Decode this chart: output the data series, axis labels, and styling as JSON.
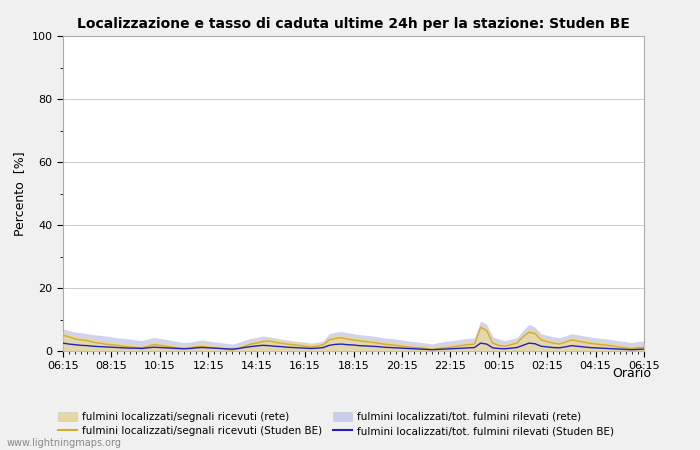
{
  "title": "Localizzazione e tasso di caduta ultime 24h per la stazione: Studen BE",
  "ylabel": "Percento  [%]",
  "ylim": [
    0,
    100
  ],
  "yticks": [
    0,
    20,
    40,
    60,
    80,
    100
  ],
  "ytick_minor": [
    10,
    30,
    50,
    70,
    90
  ],
  "xlabels": [
    "06:15",
    "08:15",
    "10:15",
    "12:15",
    "14:15",
    "16:15",
    "18:15",
    "20:15",
    "22:15",
    "00:15",
    "02:15",
    "04:15",
    "06:15"
  ],
  "background_color": "#f0f0f0",
  "plot_bg_color": "#ffffff",
  "fill_rete_color": "#e8d8a0",
  "fill_rete_alpha": 0.85,
  "fill_studen_color": "#c8ccee",
  "fill_studen_alpha": 0.85,
  "line_rete_color": "#d4aa30",
  "line_studen_color": "#2222bb",
  "line_width": 1.0,
  "watermark": "www.lightningmaps.org",
  "n_points": 97,
  "rete_fill": [
    6.2,
    5.5,
    4.8,
    4.5,
    4.3,
    3.8,
    3.5,
    3.2,
    3.0,
    2.8,
    2.5,
    2.3,
    2.1,
    2.0,
    2.5,
    3.0,
    2.8,
    2.5,
    2.2,
    2.0,
    1.8,
    2.0,
    2.3,
    2.5,
    2.2,
    2.0,
    1.8,
    1.5,
    1.3,
    1.8,
    2.5,
    3.2,
    3.5,
    4.0,
    4.2,
    3.8,
    3.5,
    3.2,
    3.0,
    2.8,
    2.5,
    2.3,
    2.5,
    3.0,
    4.5,
    5.0,
    5.2,
    4.8,
    4.5,
    4.2,
    4.0,
    3.8,
    3.5,
    3.2,
    3.0,
    2.8,
    2.5,
    2.3,
    2.1,
    2.0,
    1.8,
    1.5,
    1.8,
    2.0,
    2.2,
    2.5,
    2.8,
    3.0,
    3.2,
    8.5,
    7.5,
    3.5,
    2.8,
    2.5,
    3.0,
    3.5,
    5.5,
    7.0,
    6.5,
    4.5,
    4.0,
    3.5,
    3.2,
    3.8,
    4.5,
    4.2,
    3.8,
    3.5,
    3.2,
    3.0,
    2.8,
    2.5,
    2.2,
    2.0,
    1.8,
    2.0,
    2.2
  ],
  "studen_fill": [
    7.0,
    6.5,
    6.0,
    5.8,
    5.5,
    5.2,
    5.0,
    4.8,
    4.5,
    4.2,
    4.0,
    3.8,
    3.5,
    3.3,
    3.8,
    4.3,
    4.0,
    3.7,
    3.3,
    3.0,
    2.7,
    2.8,
    3.2,
    3.5,
    3.2,
    2.9,
    2.7,
    2.4,
    2.2,
    2.7,
    3.4,
    4.0,
    4.3,
    4.8,
    4.5,
    4.2,
    3.8,
    3.5,
    3.2,
    3.0,
    2.8,
    2.5,
    2.7,
    3.2,
    5.5,
    6.0,
    6.2,
    5.8,
    5.5,
    5.2,
    5.0,
    4.8,
    4.5,
    4.2,
    4.0,
    3.8,
    3.5,
    3.2,
    3.0,
    2.8,
    2.5,
    2.2,
    2.7,
    3.0,
    3.2,
    3.5,
    3.8,
    4.0,
    4.2,
    9.5,
    8.5,
    4.5,
    3.8,
    3.3,
    3.8,
    4.2,
    6.5,
    8.5,
    7.5,
    5.5,
    5.0,
    4.5,
    4.2,
    4.8,
    5.5,
    5.2,
    4.8,
    4.5,
    4.2,
    4.0,
    3.8,
    3.5,
    3.2,
    3.0,
    2.7,
    3.0,
    3.2
  ],
  "rete_line": [
    5.0,
    4.5,
    3.8,
    3.5,
    3.3,
    2.8,
    2.5,
    2.2,
    2.0,
    1.8,
    1.5,
    1.3,
    1.1,
    1.0,
    1.5,
    2.0,
    1.8,
    1.5,
    1.2,
    1.0,
    0.8,
    1.0,
    1.3,
    1.5,
    1.2,
    1.0,
    0.8,
    0.5,
    0.3,
    0.8,
    1.5,
    2.2,
    2.5,
    3.0,
    3.2,
    2.8,
    2.5,
    2.2,
    2.0,
    1.8,
    1.5,
    1.3,
    1.5,
    2.0,
    3.5,
    4.0,
    4.2,
    3.8,
    3.5,
    3.2,
    3.0,
    2.8,
    2.5,
    2.2,
    2.0,
    1.8,
    1.5,
    1.3,
    1.1,
    1.0,
    0.8,
    0.5,
    0.8,
    1.0,
    1.2,
    1.5,
    1.8,
    2.0,
    2.2,
    7.5,
    6.5,
    2.5,
    1.8,
    1.5,
    2.0,
    2.5,
    4.5,
    6.0,
    5.5,
    3.5,
    3.0,
    2.5,
    2.2,
    2.8,
    3.5,
    3.2,
    2.8,
    2.5,
    2.2,
    2.0,
    1.8,
    1.5,
    1.2,
    1.0,
    0.8,
    1.0,
    1.2
  ],
  "studen_line": [
    2.5,
    2.2,
    2.0,
    1.8,
    1.7,
    1.5,
    1.4,
    1.3,
    1.2,
    1.1,
    1.0,
    0.9,
    0.9,
    0.8,
    1.0,
    1.2,
    1.1,
    1.0,
    0.9,
    0.8,
    0.7,
    0.8,
    1.0,
    1.1,
    1.0,
    0.9,
    0.8,
    0.7,
    0.6,
    0.8,
    1.1,
    1.4,
    1.6,
    1.8,
    1.7,
    1.5,
    1.4,
    1.2,
    1.1,
    1.0,
    0.9,
    0.8,
    0.9,
    1.1,
    1.8,
    2.1,
    2.2,
    2.0,
    1.9,
    1.7,
    1.6,
    1.5,
    1.4,
    1.2,
    1.1,
    1.0,
    0.9,
    0.8,
    0.7,
    0.6,
    0.5,
    0.4,
    0.5,
    0.6,
    0.7,
    0.8,
    0.9,
    1.0,
    1.1,
    2.5,
    2.2,
    1.0,
    0.8,
    0.7,
    0.9,
    1.1,
    1.8,
    2.5,
    2.3,
    1.5,
    1.3,
    1.1,
    1.0,
    1.3,
    1.7,
    1.5,
    1.3,
    1.1,
    1.0,
    0.9,
    0.8,
    0.7,
    0.6,
    0.5,
    0.4,
    0.5,
    0.6
  ],
  "legend_labels": [
    "fulmini localizzati/segnali ricevuti (rete)",
    "fulmini localizzati/segnali ricevuti (Studen BE)",
    "fulmini localizzati/tot. fulmini rilevati (rete)",
    "fulmini localizzati/tot. fulmini rilevati (Studen BE)"
  ]
}
